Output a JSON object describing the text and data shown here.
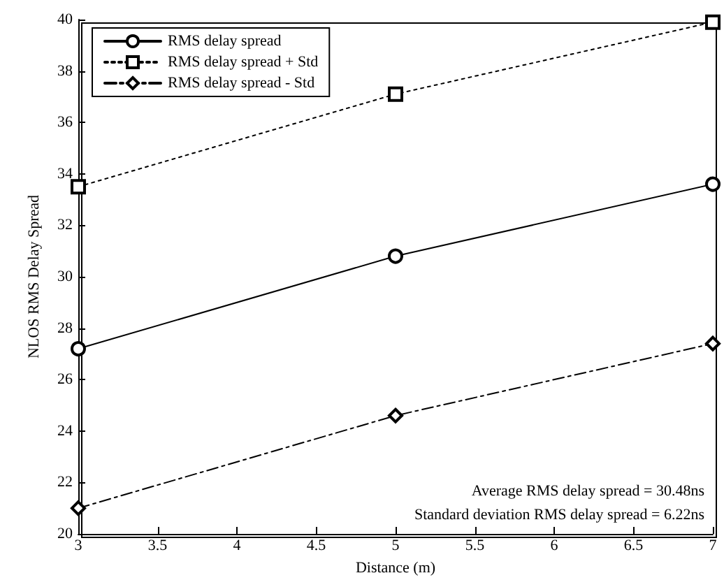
{
  "chart_data": {
    "type": "line",
    "xlabel": "Distance (m)",
    "ylabel": "NLOS RMS Delay Spread",
    "x": [
      3,
      5,
      7
    ],
    "series": [
      {
        "name": "RMS delay spread",
        "color": "#000000",
        "values": [
          27.2,
          30.8,
          33.6
        ],
        "marker": "circle",
        "line_style": "solid"
      },
      {
        "name": "RMS delay spread + Std",
        "color": "#000000",
        "values": [
          33.5,
          37.1,
          39.9
        ],
        "marker": "square",
        "line_style": "dotted"
      },
      {
        "name": "RMS delay spread - Std",
        "color": "#000000",
        "values": [
          21.0,
          24.6,
          27.4
        ],
        "marker": "diamond",
        "line_style": "dashed"
      }
    ],
    "xlim": [
      3,
      7
    ],
    "xticks": [
      3,
      3.5,
      4,
      4.5,
      5,
      5.5,
      6,
      6.5,
      7
    ],
    "ylim": [
      20,
      40
    ],
    "yticks": [
      20,
      22,
      24,
      26,
      28,
      30,
      32,
      34,
      36,
      38,
      40
    ],
    "grid": false,
    "legend": "top left",
    "annotations": [
      "Average RMS delay spread = 30.48ns",
      "Standard deviation RMS delay spread = 6.22ns"
    ]
  }
}
